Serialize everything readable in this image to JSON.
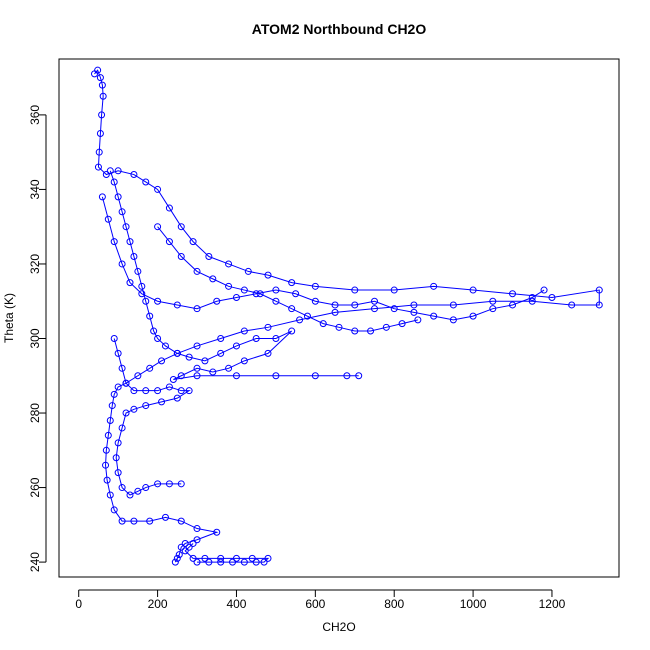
{
  "chart_data": {
    "type": "scatter",
    "title": "ATOM2 Northbound CH2O",
    "xlabel": "CH2O",
    "ylabel": "Theta (K)",
    "xlim": [
      -50,
      1370
    ],
    "ylim": [
      236,
      375
    ],
    "x_ticks": [
      0,
      200,
      400,
      600,
      800,
      1000,
      1200
    ],
    "y_ticks": [
      240,
      260,
      280,
      300,
      320,
      340,
      360
    ],
    "x_tick_labels": [
      "0",
      "200",
      "400",
      "600",
      "800",
      "1000",
      "1200"
    ],
    "y_tick_labels": [
      "240",
      "260",
      "280",
      "300",
      "320",
      "340",
      "360"
    ],
    "grid": false,
    "legend": "none",
    "marker": "open-circle",
    "connected_by_lines": true,
    "color": "#0000ff",
    "series": [
      {
        "values": [
          [
            40,
            371
          ],
          [
            48,
            372
          ],
          [
            55,
            370
          ],
          [
            60,
            368
          ],
          [
            62,
            365
          ],
          [
            58,
            360
          ],
          [
            55,
            355
          ],
          [
            52,
            350
          ],
          [
            50,
            346
          ],
          [
            70,
            344
          ],
          [
            100,
            345
          ],
          [
            140,
            344
          ],
          [
            170,
            342
          ],
          [
            200,
            340
          ],
          [
            230,
            335
          ],
          [
            260,
            330
          ],
          [
            290,
            326
          ],
          [
            330,
            322
          ],
          [
            380,
            320
          ],
          [
            430,
            318
          ],
          [
            480,
            317
          ],
          [
            540,
            315
          ],
          [
            600,
            314
          ],
          [
            700,
            313
          ],
          [
            800,
            313
          ],
          [
            900,
            314
          ],
          [
            1000,
            313
          ],
          [
            1100,
            312
          ],
          [
            1200,
            311
          ],
          [
            1320,
            313
          ],
          [
            1320,
            309
          ],
          [
            1250,
            309
          ],
          [
            1150,
            310
          ],
          [
            1050,
            310
          ],
          [
            950,
            309
          ],
          [
            850,
            309
          ],
          [
            750,
            308
          ],
          [
            650,
            307
          ],
          [
            560,
            305
          ],
          [
            480,
            303
          ],
          [
            420,
            302
          ],
          [
            360,
            300
          ],
          [
            300,
            298
          ],
          [
            250,
            296
          ],
          [
            210,
            294
          ],
          [
            180,
            292
          ],
          [
            150,
            290
          ],
          [
            120,
            288
          ],
          [
            100,
            287
          ],
          [
            90,
            285
          ],
          [
            85,
            282
          ],
          [
            80,
            278
          ],
          [
            75,
            274
          ],
          [
            70,
            270
          ],
          [
            68,
            266
          ],
          [
            72,
            262
          ],
          [
            80,
            258
          ],
          [
            90,
            254
          ],
          [
            110,
            251
          ],
          [
            140,
            251
          ],
          [
            180,
            251
          ],
          [
            220,
            252
          ],
          [
            260,
            251
          ],
          [
            300,
            249
          ],
          [
            350,
            248
          ],
          [
            300,
            246
          ],
          [
            270,
            245
          ],
          [
            260,
            244
          ],
          [
            255,
            242
          ],
          [
            250,
            241
          ],
          [
            245,
            240
          ]
        ]
      },
      {
        "values": [
          [
            80,
            345
          ],
          [
            90,
            342
          ],
          [
            100,
            338
          ],
          [
            110,
            334
          ],
          [
            120,
            330
          ],
          [
            130,
            326
          ],
          [
            140,
            322
          ],
          [
            150,
            318
          ],
          [
            160,
            314
          ],
          [
            170,
            310
          ],
          [
            180,
            306
          ],
          [
            190,
            302
          ],
          [
            200,
            300
          ],
          [
            220,
            298
          ],
          [
            250,
            296
          ],
          [
            280,
            295
          ],
          [
            320,
            294
          ],
          [
            360,
            296
          ],
          [
            400,
            298
          ],
          [
            450,
            300
          ],
          [
            500,
            300
          ],
          [
            540,
            302
          ],
          [
            480,
            296
          ],
          [
            420,
            294
          ],
          [
            380,
            292
          ],
          [
            340,
            291
          ],
          [
            300,
            292
          ],
          [
            260,
            290
          ],
          [
            240,
            289
          ],
          [
            300,
            290
          ],
          [
            400,
            290
          ],
          [
            500,
            290
          ],
          [
            600,
            290
          ],
          [
            680,
            290
          ],
          [
            710,
            290
          ]
        ]
      },
      {
        "values": [
          [
            60,
            338
          ],
          [
            75,
            332
          ],
          [
            90,
            326
          ],
          [
            110,
            320
          ],
          [
            130,
            315
          ],
          [
            160,
            312
          ],
          [
            200,
            310
          ],
          [
            250,
            309
          ],
          [
            300,
            308
          ],
          [
            350,
            310
          ],
          [
            400,
            311
          ],
          [
            450,
            312
          ],
          [
            500,
            313
          ],
          [
            550,
            312
          ],
          [
            600,
            310
          ],
          [
            650,
            309
          ],
          [
            700,
            309
          ],
          [
            750,
            310
          ],
          [
            800,
            308
          ],
          [
            850,
            307
          ],
          [
            900,
            306
          ],
          [
            950,
            305
          ],
          [
            1000,
            306
          ],
          [
            1050,
            308
          ],
          [
            1100,
            309
          ],
          [
            1150,
            311
          ],
          [
            1180,
            313
          ]
        ]
      },
      {
        "values": [
          [
            90,
            300
          ],
          [
            100,
            296
          ],
          [
            110,
            292
          ],
          [
            120,
            288
          ],
          [
            140,
            286
          ],
          [
            170,
            286
          ],
          [
            200,
            286
          ],
          [
            230,
            287
          ],
          [
            260,
            286
          ],
          [
            280,
            286
          ],
          [
            250,
            284
          ],
          [
            210,
            283
          ],
          [
            170,
            282
          ],
          [
            140,
            281
          ],
          [
            120,
            280
          ],
          [
            110,
            276
          ],
          [
            100,
            272
          ],
          [
            95,
            268
          ],
          [
            100,
            264
          ],
          [
            110,
            260
          ],
          [
            130,
            258
          ],
          [
            150,
            259
          ],
          [
            170,
            260
          ],
          [
            200,
            261
          ],
          [
            230,
            261
          ],
          [
            260,
            261
          ]
        ]
      },
      {
        "values": [
          [
            300,
            240
          ],
          [
            330,
            240
          ],
          [
            360,
            240
          ],
          [
            390,
            240
          ],
          [
            420,
            240
          ],
          [
            450,
            240
          ],
          [
            470,
            240
          ],
          [
            480,
            241
          ],
          [
            440,
            241
          ],
          [
            400,
            241
          ],
          [
            360,
            241
          ],
          [
            320,
            241
          ],
          [
            290,
            241
          ],
          [
            270,
            243
          ],
          [
            280,
            244
          ],
          [
            290,
            245
          ]
        ]
      },
      {
        "values": [
          [
            200,
            330
          ],
          [
            230,
            326
          ],
          [
            260,
            322
          ],
          [
            300,
            318
          ],
          [
            340,
            316
          ],
          [
            380,
            314
          ],
          [
            420,
            313
          ],
          [
            460,
            312
          ],
          [
            500,
            310
          ],
          [
            540,
            308
          ],
          [
            580,
            306
          ],
          [
            620,
            304
          ],
          [
            660,
            303
          ],
          [
            700,
            302
          ],
          [
            740,
            302
          ],
          [
            780,
            303
          ],
          [
            820,
            304
          ],
          [
            860,
            305
          ]
        ]
      }
    ]
  }
}
